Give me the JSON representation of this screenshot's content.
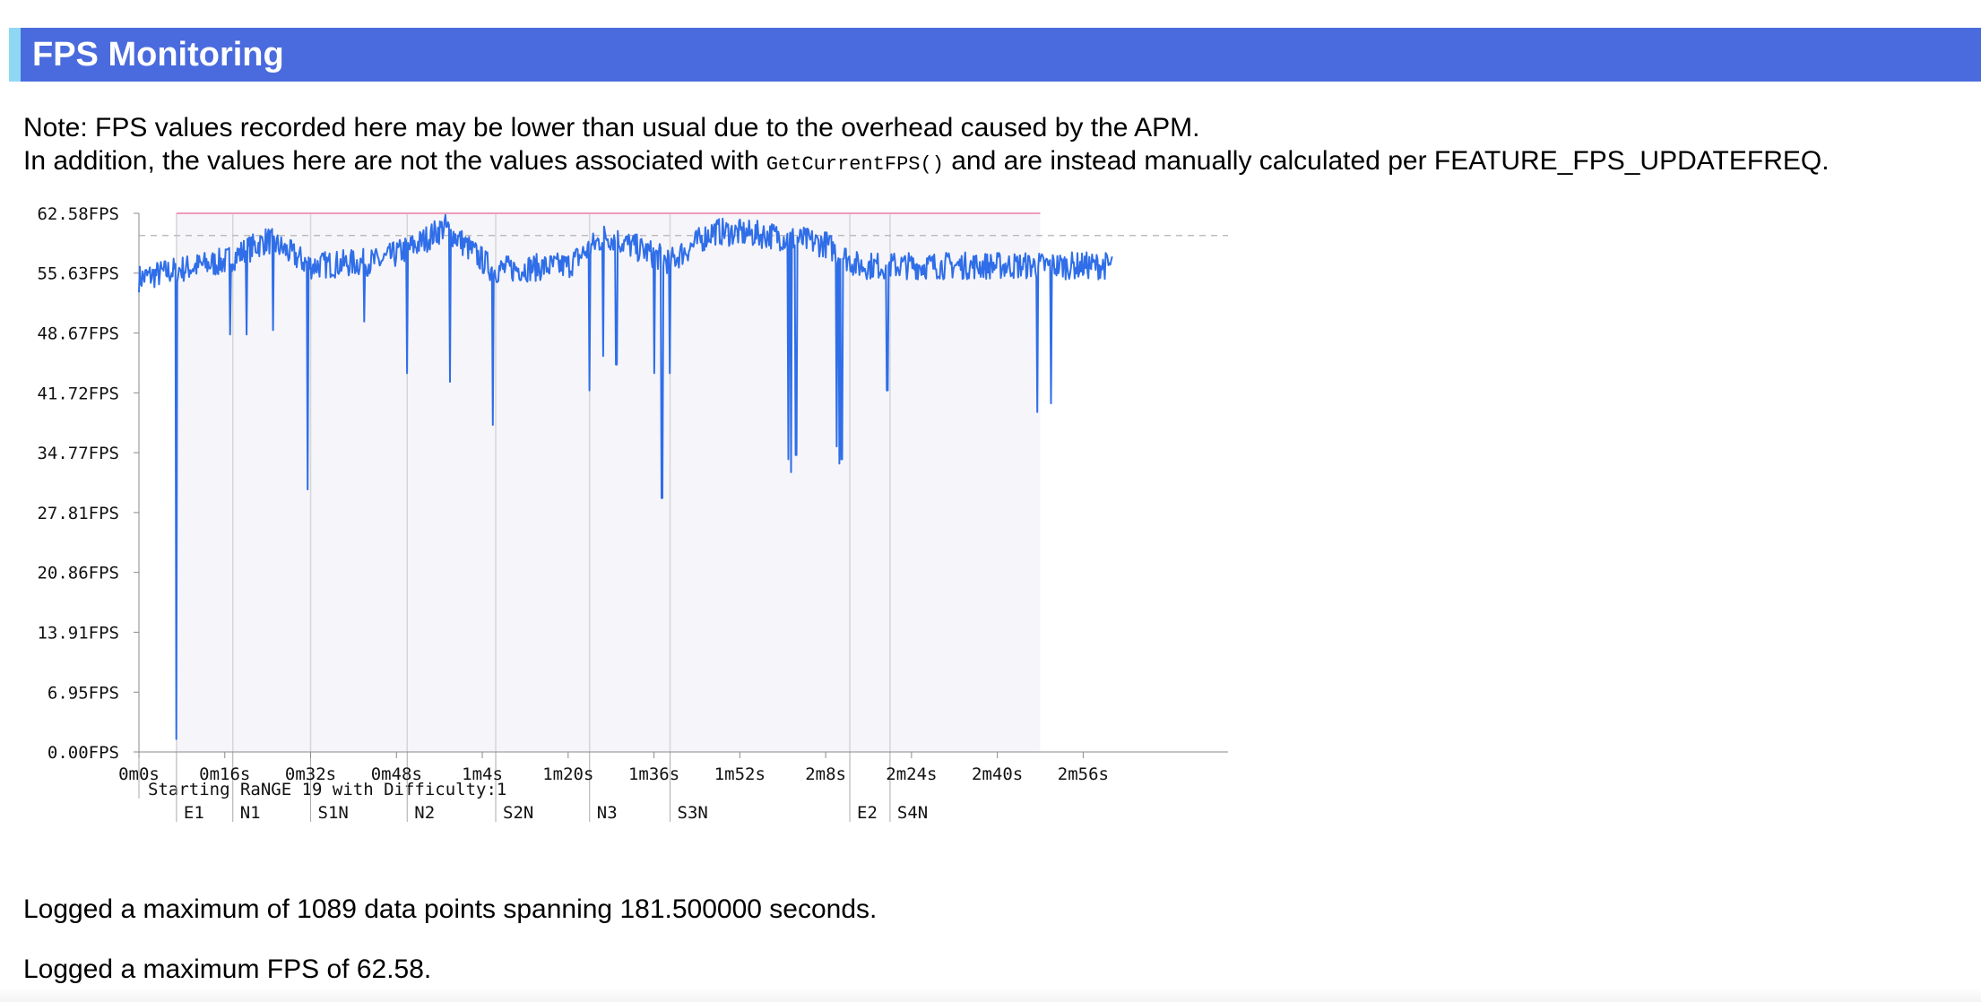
{
  "header": {
    "title": "FPS Monitoring"
  },
  "note": {
    "line1": "Note: FPS values recorded here may be lower than usual due to the overhead caused by the APM.",
    "line2_before": "In addition, the values here are not the values associated with ",
    "line2_code": "GetCurrentFPS()",
    "line2_after": " and are instead manually calculated per FEATURE_FPS_UPDATEFREQ."
  },
  "chart_data": {
    "type": "line",
    "series_color": "#2f6ee8",
    "max_line_color": "#ee9ab9",
    "avg_line_color": "#bdbdbd",
    "shade_color": "#f6f5fa",
    "y_ticks": [
      "0.00FPS",
      "6.95FPS",
      "13.91FPS",
      "20.86FPS",
      "27.81FPS",
      "34.77FPS",
      "41.72FPS",
      "48.67FPS",
      "55.63FPS",
      "62.58FPS"
    ],
    "y_tick_values": [
      0,
      6.95,
      13.91,
      20.86,
      27.81,
      34.77,
      41.72,
      48.67,
      55.63,
      62.58
    ],
    "x_ticks": [
      "0m0s",
      "0m16s",
      "0m32s",
      "0m48s",
      "1m4s",
      "1m20s",
      "1m36s",
      "1m52s",
      "2m8s",
      "2m24s",
      "2m40s",
      "2m56s"
    ],
    "x_tick_values": [
      0,
      16,
      32,
      48,
      64,
      80,
      96,
      112,
      128,
      144,
      160,
      176
    ],
    "ylim": [
      0,
      62.58
    ],
    "xlim": [
      0,
      203
    ],
    "shaded_range": [
      7,
      168
    ],
    "max_fps": 62.58,
    "avg_fps": 60,
    "events": [
      {
        "label": "Starting RaNGE 19 with Difficulty:1",
        "x": 0,
        "row": 0
      },
      {
        "label": "E1",
        "x": 7,
        "row": 1
      },
      {
        "label": "N1",
        "x": 17.5,
        "row": 1
      },
      {
        "label": "S1N",
        "x": 32,
        "row": 1
      },
      {
        "label": "N2",
        "x": 50,
        "row": 1
      },
      {
        "label": "S2N",
        "x": 66.5,
        "row": 1
      },
      {
        "label": "N3",
        "x": 84,
        "row": 1
      },
      {
        "label": "S3N",
        "x": 99,
        "row": 1
      },
      {
        "label": "E2",
        "x": 132.5,
        "row": 1
      },
      {
        "label": "S4N",
        "x": 140,
        "row": 1
      }
    ],
    "regimes": [
      [
        0,
        55
      ],
      [
        7,
        56
      ],
      [
        16,
        57
      ],
      [
        24,
        59.5
      ],
      [
        32,
        56.5
      ],
      [
        45,
        57
      ],
      [
        52,
        59
      ],
      [
        57,
        61
      ],
      [
        66,
        56
      ],
      [
        80,
        56.5
      ],
      [
        87,
        60
      ],
      [
        99,
        57
      ],
      [
        107,
        60.5
      ],
      [
        118,
        60
      ],
      [
        128,
        59
      ],
      [
        134,
        56.5
      ],
      [
        168,
        56.5
      ],
      [
        181,
        56.5
      ]
    ],
    "dips": [
      [
        7,
        1.5
      ],
      [
        17,
        48.5
      ],
      [
        20,
        48.5
      ],
      [
        25,
        49
      ],
      [
        31.5,
        30.5
      ],
      [
        42,
        50
      ],
      [
        50,
        44
      ],
      [
        58,
        43
      ],
      [
        66,
        38
      ],
      [
        84,
        42
      ],
      [
        86.5,
        46
      ],
      [
        89,
        45
      ],
      [
        96,
        44
      ],
      [
        97.5,
        29.5
      ],
      [
        99,
        44
      ],
      [
        121,
        34
      ],
      [
        121.5,
        32.5
      ],
      [
        122.5,
        34.5
      ],
      [
        130,
        35.5
      ],
      [
        130.5,
        33.5
      ],
      [
        131,
        34
      ],
      [
        139.5,
        42
      ],
      [
        167.5,
        39.5
      ],
      [
        170,
        40.5
      ]
    ],
    "noise_amplitude": 1.6,
    "data_end": 181.5
  },
  "summary": {
    "points": "Logged a maximum of 1089 data points spanning 181.500000 seconds.",
    "max_fps": "Logged a maximum FPS of 62.58."
  }
}
